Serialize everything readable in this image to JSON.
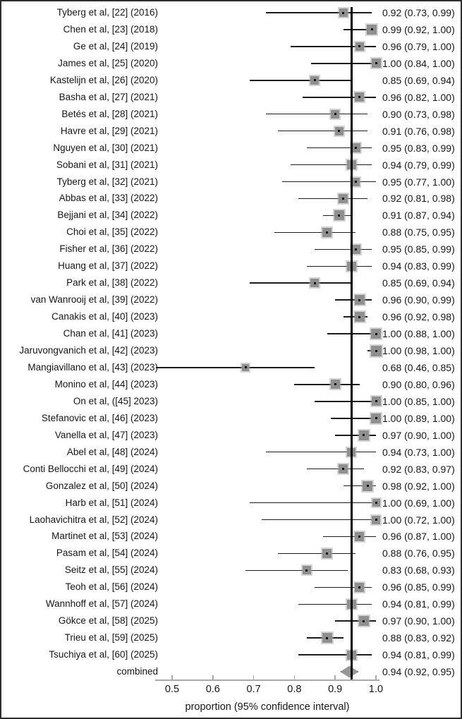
{
  "chart_data": {
    "type": "forest",
    "title": "",
    "xlabel": "proportion (95% confidence interval)",
    "x_ticks": [
      0.5,
      0.6,
      0.7,
      0.8,
      0.9,
      1.0
    ],
    "x_tick_labels": [
      "0.5",
      "0.6",
      "0.7",
      "0.8",
      "0.9",
      "1.0"
    ],
    "xlim": [
      0.45,
      1.0
    ],
    "grid": false,
    "legend": "none",
    "reference_line": 0.94,
    "colors": {
      "square_fill": "#8f8f8f",
      "square_halo": "#b9b9b9",
      "ci_line": "#1c1c1c",
      "reference_line": "#000000",
      "axis": "#a9a9a9",
      "text": "#161616",
      "diamond_fill": "#979797",
      "frame_border": "#2e2e2e"
    },
    "studies": [
      {
        "label": "Tyberg et al, [22] (2016)",
        "est": 0.92,
        "lo": 0.73,
        "hi": 0.99,
        "text": "0.92 (0.73, 0.99)"
      },
      {
        "label": "Chen et al, [23] (2018)",
        "est": 0.99,
        "lo": 0.92,
        "hi": 1.0,
        "text": "0.99 (0.92, 1.00)"
      },
      {
        "label": "Ge et al, [24] (2019)",
        "est": 0.96,
        "lo": 0.79,
        "hi": 1.0,
        "text": "0.96 (0.79, 1.00)"
      },
      {
        "label": "James et al, [25] (2020)",
        "est": 1.0,
        "lo": 0.84,
        "hi": 1.0,
        "text": "1.00 (0.84, 1.00)"
      },
      {
        "label": "Kastelijn et al, [26] (2020)",
        "est": 0.85,
        "lo": 0.69,
        "hi": 0.94,
        "text": "0.85 (0.69, 0.94)"
      },
      {
        "label": "Basha et al, [27] (2021)",
        "est": 0.96,
        "lo": 0.82,
        "hi": 1.0,
        "text": "0.96 (0.82, 1.00)"
      },
      {
        "label": "Betés et al, [28] (2021)",
        "est": 0.9,
        "lo": 0.73,
        "hi": 0.98,
        "text": "0.90 (0.73, 0.98)"
      },
      {
        "label": "Havre et al, [29] (2021)",
        "est": 0.91,
        "lo": 0.76,
        "hi": 0.98,
        "text": "0.91 (0.76, 0.98)"
      },
      {
        "label": "Nguyen et al, [30] (2021)",
        "est": 0.95,
        "lo": 0.83,
        "hi": 0.99,
        "text": "0.95 (0.83, 0.99)"
      },
      {
        "label": "Sobani et al, [31] (2021)",
        "est": 0.94,
        "lo": 0.79,
        "hi": 0.99,
        "text": "0.94 (0.79, 0.99)"
      },
      {
        "label": "Tyberg et al, [32] (2021)",
        "est": 0.95,
        "lo": 0.77,
        "hi": 1.0,
        "text": "0.95 (0.77, 1.00)"
      },
      {
        "label": "Abbas et al, [33] (2022)",
        "est": 0.92,
        "lo": 0.81,
        "hi": 0.98,
        "text": "0.92 (0.81, 0.98)"
      },
      {
        "label": "Bejjani et al, [34] (2022)",
        "est": 0.91,
        "lo": 0.87,
        "hi": 0.94,
        "text": "0.91 (0.87, 0.94)"
      },
      {
        "label": "Choi et al, [35] (2022)",
        "est": 0.88,
        "lo": 0.75,
        "hi": 0.95,
        "text": "0.88 (0.75, 0.95)"
      },
      {
        "label": "Fisher et al, [36] (2022)",
        "est": 0.95,
        "lo": 0.85,
        "hi": 0.99,
        "text": "0.95 (0.85, 0.99)"
      },
      {
        "label": "Huang et al, [37] (2022)",
        "est": 0.94,
        "lo": 0.83,
        "hi": 0.99,
        "text": "0.94 (0.83, 0.99)"
      },
      {
        "label": "Park et al, [38] (2022)",
        "est": 0.85,
        "lo": 0.69,
        "hi": 0.94,
        "text": "0.85 (0.69, 0.94)"
      },
      {
        "label": "van Wanrooij et al, [39] (2022)",
        "est": 0.96,
        "lo": 0.9,
        "hi": 0.99,
        "text": "0.96 (0.90, 0.99)"
      },
      {
        "label": "Canakis et al, [40] (2023)",
        "est": 0.96,
        "lo": 0.92,
        "hi": 0.98,
        "text": "0.96 (0.92, 0.98)"
      },
      {
        "label": "Chan et al, [41] (2023)",
        "est": 1.0,
        "lo": 0.88,
        "hi": 1.0,
        "text": "1.00 (0.88, 1.00)"
      },
      {
        "label": "Jaruvongvanich et al, [42] (2023)",
        "est": 1.0,
        "lo": 0.98,
        "hi": 1.0,
        "text": "1.00 (0.98, 1.00)"
      },
      {
        "label": "Mangiavillano et al, [43] (2023)",
        "est": 0.68,
        "lo": 0.46,
        "hi": 0.85,
        "text": "0.68 (0.46, 0.85)"
      },
      {
        "label": "Monino et al, [44] (2023)",
        "est": 0.9,
        "lo": 0.8,
        "hi": 0.96,
        "text": "0.90 (0.80, 0.96)"
      },
      {
        "label": "On et al, ([45] 2023)",
        "est": 1.0,
        "lo": 0.85,
        "hi": 1.0,
        "text": "1.00 (0.85, 1.00)"
      },
      {
        "label": "Stefanovic et al, [46] (2023)",
        "est": 1.0,
        "lo": 0.89,
        "hi": 1.0,
        "text": "1.00 (0.89, 1.00)"
      },
      {
        "label": "Vanella et al, [47] (2023)",
        "est": 0.97,
        "lo": 0.9,
        "hi": 1.0,
        "text": "0.97 (0.90, 1.00)"
      },
      {
        "label": "Abel et al, [48] (2024)",
        "est": 0.94,
        "lo": 0.73,
        "hi": 1.0,
        "text": "0.94 (0.73, 1.00)"
      },
      {
        "label": "Conti Bellocchi et al, [49] (2024)",
        "est": 0.92,
        "lo": 0.83,
        "hi": 0.97,
        "text": "0.92 (0.83, 0.97)"
      },
      {
        "label": "Gonzalez et al, [50] (2024)",
        "est": 0.98,
        "lo": 0.92,
        "hi": 1.0,
        "text": "0.98 (0.92, 1.00)"
      },
      {
        "label": "Harb et al, [51] (2024)",
        "est": 1.0,
        "lo": 0.69,
        "hi": 1.0,
        "text": "1.00 (0.69, 1.00)"
      },
      {
        "label": "Laohavichitra et al, [52] (2024)",
        "est": 1.0,
        "lo": 0.72,
        "hi": 1.0,
        "text": "1.00 (0.72, 1.00)"
      },
      {
        "label": "Martinet et al, [53] (2024)",
        "est": 0.96,
        "lo": 0.87,
        "hi": 1.0,
        "text": "0.96 (0.87, 1.00)"
      },
      {
        "label": "Pasam et al, [54] (2024)",
        "est": 0.88,
        "lo": 0.76,
        "hi": 0.95,
        "text": "0.88 (0.76, 0.95)"
      },
      {
        "label": "Seitz et al, [55] (2024)",
        "est": 0.83,
        "lo": 0.68,
        "hi": 0.93,
        "text": "0.83 (0.68, 0.93)"
      },
      {
        "label": "Teoh et al, [56] (2024)",
        "est": 0.96,
        "lo": 0.85,
        "hi": 0.99,
        "text": "0.96 (0.85, 0.99)"
      },
      {
        "label": "Wannhoff et al, [57] (2024)",
        "est": 0.94,
        "lo": 0.81,
        "hi": 0.99,
        "text": "0.94 (0.81, 0.99)"
      },
      {
        "label": "Gökce et al, [58] (2025)",
        "est": 0.97,
        "lo": 0.9,
        "hi": 1.0,
        "text": "0.97 (0.90, 1.00)"
      },
      {
        "label": "Trieu et al, [59] (2025)",
        "est": 0.88,
        "lo": 0.83,
        "hi": 0.92,
        "text": "0.88 (0.83, 0.92)"
      },
      {
        "label": "Tsuchiya et al, [60] (2025)",
        "est": 0.94,
        "lo": 0.81,
        "hi": 0.99,
        "text": "0.94 (0.81, 0.99)"
      }
    ],
    "combined": {
      "label": "combined",
      "est": 0.94,
      "lo": 0.92,
      "hi": 0.95,
      "text": "0.94 (0.92, 0.95)"
    }
  }
}
